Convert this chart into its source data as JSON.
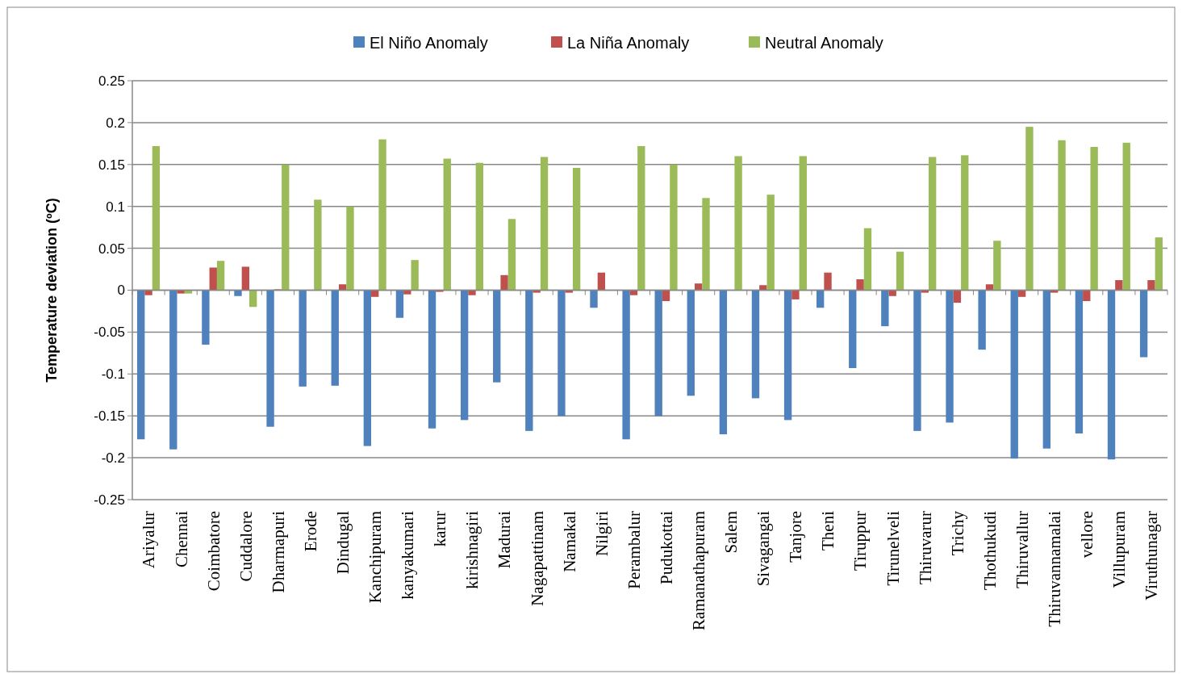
{
  "chart_data": {
    "type": "bar",
    "ylabel": "Temperature deviation (ºC)",
    "categories": [
      "Ariyalur",
      "Chennai",
      "Coimbatore",
      "Cuddalore",
      "Dharmapuri",
      "Erode",
      "Dindugal",
      "Kanchipuram",
      "kanyakumari",
      "karur",
      "kirishnagiri",
      "Madurai",
      "Nagapattinam",
      "Namakal",
      "Nilgiri",
      "Perambalur",
      "Pudukottai",
      "Ramanathapuram",
      "Salem",
      "Sivagangai",
      "Tanjore",
      "Theni",
      "Tiruppur",
      "Tirunelveli",
      "Thiruvarur",
      "Trichy",
      "Thothukudi",
      "Thiruvallur",
      "Thiruvannamalai",
      "vellore",
      "Villupuram",
      "Viruthunagar"
    ],
    "series": [
      {
        "name": "El Niño Anomaly",
        "color": "#4f81bd",
        "values": [
          -0.178,
          -0.19,
          -0.065,
          -0.007,
          -0.163,
          -0.115,
          -0.114,
          -0.186,
          -0.033,
          -0.165,
          -0.155,
          -0.11,
          -0.168,
          -0.15,
          -0.021,
          -0.178,
          -0.15,
          -0.126,
          -0.172,
          -0.129,
          -0.155,
          -0.021,
          -0.093,
          -0.043,
          -0.168,
          -0.158,
          -0.071,
          -0.201,
          -0.189,
          -0.171,
          -0.202,
          -0.08
        ]
      },
      {
        "name": "La Niña Anomaly",
        "color": "#c0504d",
        "values": [
          -0.006,
          -0.004,
          0.027,
          0.028,
          0.001,
          0,
          0.007,
          -0.008,
          -0.005,
          -0.002,
          -0.006,
          0.018,
          -0.003,
          -0.003,
          0.021,
          -0.006,
          -0.013,
          0.008,
          0,
          0.006,
          -0.011,
          0.021,
          0.013,
          -0.007,
          -0.003,
          -0.015,
          0.007,
          -0.008,
          -0.003,
          -0.013,
          0.012,
          0.012
        ]
      },
      {
        "name": "Neutral Anomaly",
        "color": "#9bbb59",
        "values": [
          0.172,
          -0.004,
          0.035,
          -0.02,
          0.15,
          0.108,
          0.1,
          0.18,
          0.036,
          0.157,
          0.152,
          0.085,
          0.159,
          0.146,
          0,
          0.172,
          0.15,
          0.11,
          0.16,
          0.114,
          0.16,
          0,
          0.074,
          0.046,
          0.159,
          0.161,
          0.059,
          0.195,
          0.179,
          0.171,
          0.176,
          0.063
        ]
      }
    ],
    "ylim": [
      -0.25,
      0.25
    ],
    "yticks": [
      -0.25,
      -0.2,
      -0.15,
      -0.1,
      -0.05,
      0,
      0.05,
      0.1,
      0.15,
      0.2,
      0.25
    ],
    "grid": "y",
    "legend": "top"
  }
}
